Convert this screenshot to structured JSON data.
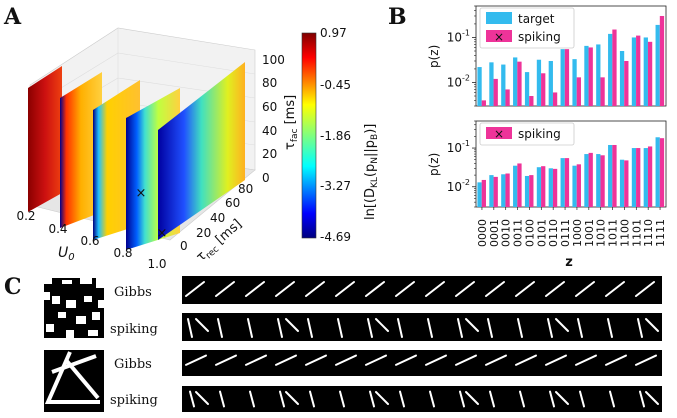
{
  "panels": {
    "A": {
      "letter": "A",
      "chart_data": {
        "type": "heatmap",
        "description_axes": {
          "x": {
            "label": "U",
            "sub": "0",
            "ticks": [
              "0.2",
              "0.4",
              "0.6",
              "0.8",
              "1.0"
            ]
          },
          "y": {
            "label": "τ",
            "sub": "rec",
            "unit": " [ms]",
            "ticks": [
              "0",
              "20",
              "40",
              "60",
              "80"
            ]
          },
          "z": {
            "label": "τ",
            "sub": "fac",
            "unit": " [ms]",
            "ticks": [
              "0",
              "20",
              "40",
              "60",
              "80",
              "100"
            ]
          }
        },
        "slices_U0": [
          0.2,
          0.4,
          0.6,
          0.8,
          1.0
        ],
        "markers": [
          {
            "symbol": "×",
            "color": "#ffffff"
          },
          {
            "symbol": "×",
            "color": "#111111"
          }
        ],
        "colorbar": {
          "label_prefix": "ln[(D",
          "label_sub": "KL",
          "label_mid": "(p",
          "label_sub2": "N",
          "label_mid2": "||p",
          "label_sub3": "B",
          "label_suffix": ")]",
          "ticks": [
            "0.97",
            "-0.45",
            "-1.86",
            "-3.27",
            "-4.69"
          ],
          "range": [
            -4.69,
            0.97
          ]
        }
      }
    },
    "B": {
      "letter": "B",
      "chart_data": [
        {
          "type": "bar",
          "ylabel": "p(z)",
          "yscale": "log",
          "ylim": [
            0.003,
            0.5
          ],
          "yticks": [
            "10^-2",
            "10^-1"
          ],
          "legend": {
            "position": "top-left",
            "entries": [
              "target",
              "spiking"
            ]
          },
          "categories": [
            "0000",
            "0001",
            "0010",
            "0011",
            "0100",
            "0101",
            "0110",
            "0111",
            "1000",
            "1001",
            "1010",
            "1011",
            "1100",
            "1101",
            "1110",
            "1111"
          ],
          "series": [
            {
              "name": "target",
              "color": "#33bbee",
              "values": [
                0.022,
                0.028,
                0.025,
                0.036,
                0.017,
                0.032,
                0.03,
                0.055,
                0.033,
                0.065,
                0.07,
                0.12,
                0.05,
                0.1,
                0.1,
                0.19
              ]
            },
            {
              "name": "spiking",
              "color": "#ee3399",
              "values": [
                0.004,
                0.012,
                0.007,
                0.029,
                0.005,
                0.016,
                0.006,
                0.055,
                0.013,
                0.06,
                0.013,
                0.15,
                0.03,
                0.11,
                0.08,
                0.3
              ]
            }
          ]
        },
        {
          "type": "bar",
          "ylabel": "p(z)",
          "yscale": "log",
          "ylim": [
            0.003,
            0.5
          ],
          "yticks": [
            "10^-2",
            "10^-1"
          ],
          "xlabel": "z",
          "legend": {
            "position": "top-left",
            "entries": [
              "spiking"
            ]
          },
          "categories": [
            "0000",
            "0001",
            "0010",
            "0011",
            "0100",
            "0101",
            "0110",
            "0111",
            "1000",
            "1001",
            "1010",
            "1011",
            "1100",
            "1101",
            "1110",
            "1111"
          ],
          "series": [
            {
              "name": "target",
              "color": "#33bbee",
              "values": [
                0.013,
                0.02,
                0.021,
                0.035,
                0.019,
                0.032,
                0.03,
                0.055,
                0.035,
                0.07,
                0.07,
                0.12,
                0.05,
                0.1,
                0.1,
                0.19
              ]
            },
            {
              "name": "spiking",
              "color": "#ee3399",
              "values": [
                0.015,
                0.018,
                0.022,
                0.04,
                0.02,
                0.034,
                0.029,
                0.055,
                0.038,
                0.075,
                0.065,
                0.12,
                0.048,
                0.1,
                0.11,
                0.18
              ]
            }
          ]
        }
      ]
    },
    "C": {
      "letter": "C",
      "rows": [
        {
          "label": "Gibbs"
        },
        {
          "label": "spiking"
        },
        {
          "label": "Gibbs"
        },
        {
          "label": "spiking"
        }
      ]
    }
  }
}
